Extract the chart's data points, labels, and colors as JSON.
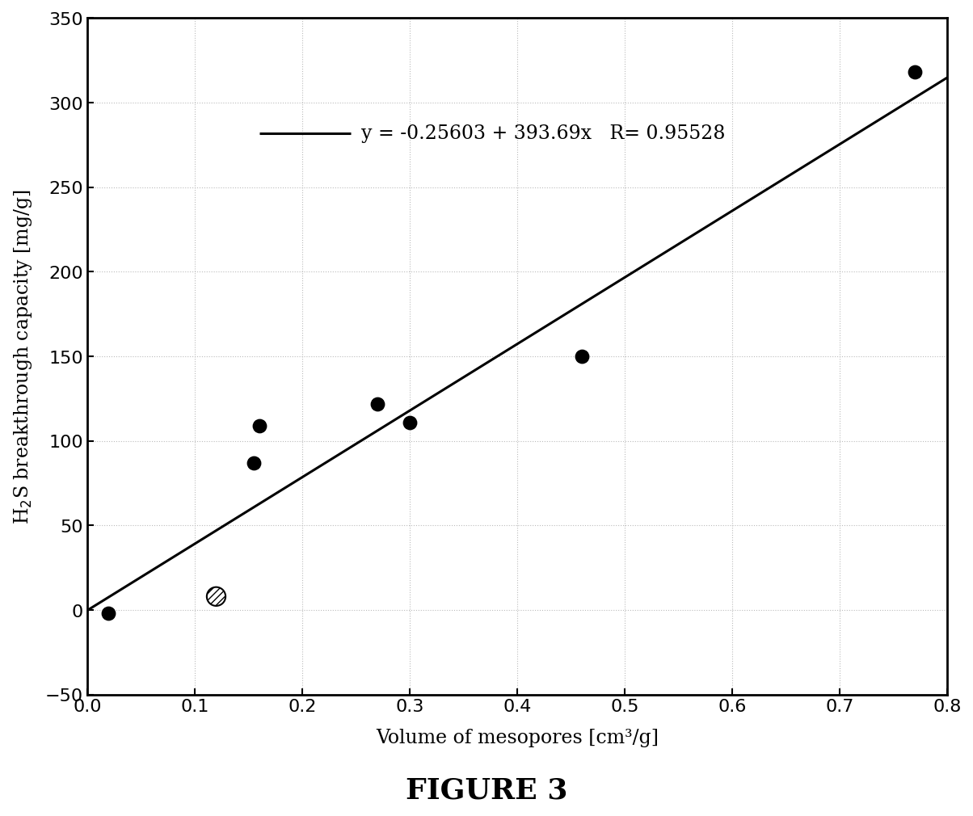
{
  "scatter_x": [
    0.02,
    0.155,
    0.16,
    0.27,
    0.3,
    0.46,
    0.77
  ],
  "scatter_y": [
    -2,
    87,
    109,
    122,
    111,
    150,
    318
  ],
  "scatter_x_special": [
    0.12
  ],
  "scatter_y_special": [
    8
  ],
  "line_intercept": -0.25603,
  "line_slope": 393.69,
  "equation_text": "y = -0.25603 + 393.69x   R= 0.95528",
  "xlabel": "Volume of mesopores [cm³/g]",
  "ylabel": "H$_2$S breakthrough capacity [mg/g]",
  "title": "FIGURE 3",
  "xlim": [
    0,
    0.8
  ],
  "ylim": [
    -50,
    350
  ],
  "xticks": [
    0.0,
    0.1,
    0.2,
    0.3,
    0.4,
    0.5,
    0.6,
    0.7,
    0.8
  ],
  "yticks": [
    -50,
    0,
    50,
    100,
    150,
    200,
    250,
    300,
    350
  ],
  "dot_color": "#000000",
  "dot_size": 140,
  "line_color": "#000000",
  "line_width": 2.2,
  "grid_color": "#bbbbbb",
  "background_color": "#ffffff"
}
